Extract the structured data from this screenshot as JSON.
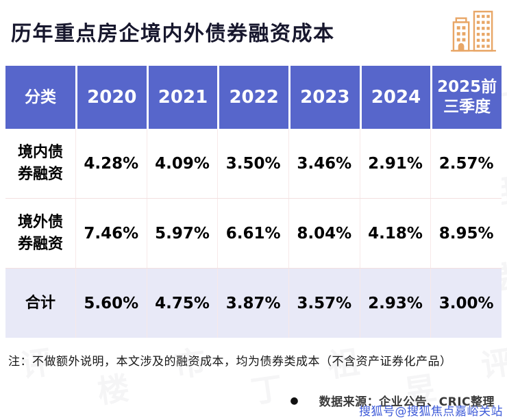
{
  "page": {
    "title": "历年重点房企境内外债券融资成本",
    "note": "注：不做额外说明，本文涉及的融资成本，均为债券类成本（不含资产证券化产品）",
    "source_bullet": "●",
    "source": "数据来源：企业公告、CRIC整理",
    "footer_handle": "搜狐号@搜狐焦点嘉峪关站"
  },
  "table": {
    "headers": [
      "分类",
      "2020",
      "2021",
      "2022",
      "2023",
      "2024",
      "2025前三季度"
    ],
    "rows": [
      {
        "label": "境内债券融资",
        "values": [
          "4.28%",
          "4.09%",
          "3.50%",
          "3.46%",
          "2.91%",
          "2.57%"
        ]
      },
      {
        "label": "境外债券融资",
        "values": [
          "7.46%",
          "5.97%",
          "6.61%",
          "8.04%",
          "4.18%",
          "8.95%"
        ]
      },
      {
        "label": "合计",
        "values": [
          "5.60%",
          "4.75%",
          "3.87%",
          "3.57%",
          "2.93%",
          "3.00%"
        ]
      }
    ]
  },
  "chart_data": {
    "type": "table",
    "title": "历年重点房企境内外债券融资成本",
    "categories": [
      "2020",
      "2021",
      "2022",
      "2023",
      "2024",
      "2025前三季度"
    ],
    "series": [
      {
        "name": "境内债券融资",
        "values": [
          4.28,
          4.09,
          3.5,
          3.46,
          2.91,
          2.57
        ]
      },
      {
        "name": "境外债券融资",
        "values": [
          7.46,
          5.97,
          6.61,
          8.04,
          4.18,
          8.95
        ]
      },
      {
        "name": "合计",
        "values": [
          5.6,
          4.75,
          3.87,
          3.57,
          2.93,
          3.0
        ]
      }
    ],
    "unit": "%"
  },
  "icons": {
    "brand": "buildings-icon"
  },
  "colors": {
    "header_bg": "#5766CB",
    "total_row_bg": "#E8E9F7",
    "accent_orange": "#E8A666",
    "footer_blue": "#3E5BD8"
  },
  "watermark": {
    "text": "丁祖昱评楼市"
  }
}
